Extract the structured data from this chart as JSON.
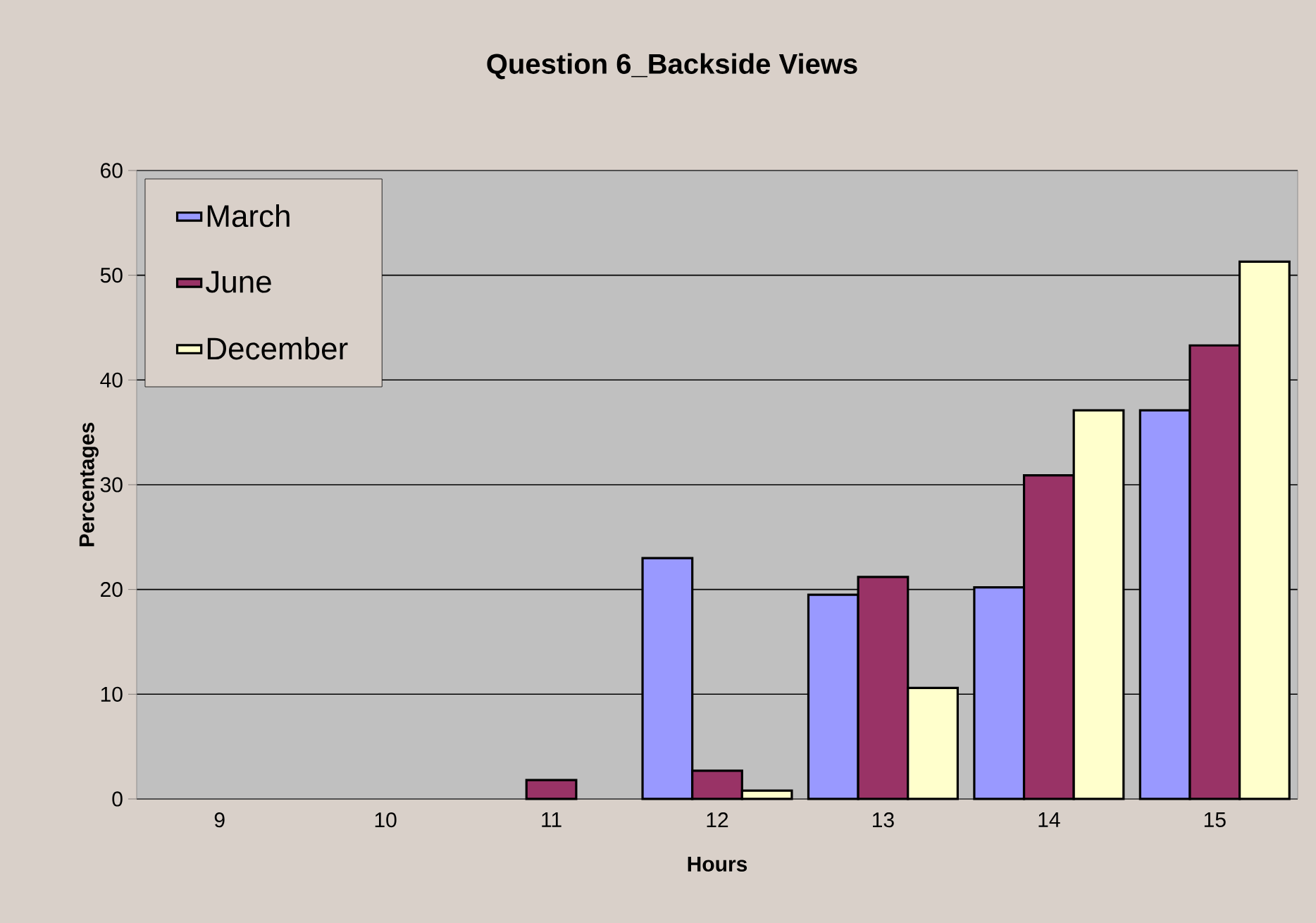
{
  "chart_data": {
    "type": "bar",
    "title": "Question 6_Backside Views",
    "xlabel": "Hours",
    "ylabel": "Percentages",
    "categories": [
      "9",
      "10",
      "11",
      "12",
      "13",
      "14",
      "15"
    ],
    "series": [
      {
        "name": "March",
        "color": "#9999ff",
        "values": [
          null,
          null,
          null,
          23.0,
          19.5,
          20.2,
          37.1
        ]
      },
      {
        "name": "June",
        "color": "#993366",
        "values": [
          null,
          null,
          1.8,
          2.7,
          21.2,
          30.9,
          43.3
        ]
      },
      {
        "name": "December",
        "color": "#ffffcc",
        "values": [
          null,
          null,
          null,
          0.8,
          10.6,
          37.1,
          51.3
        ]
      }
    ],
    "ylim": [
      0,
      60
    ],
    "yticks": [
      0,
      10,
      20,
      30,
      40,
      50,
      60
    ],
    "grid": "y",
    "legend": "top left"
  }
}
